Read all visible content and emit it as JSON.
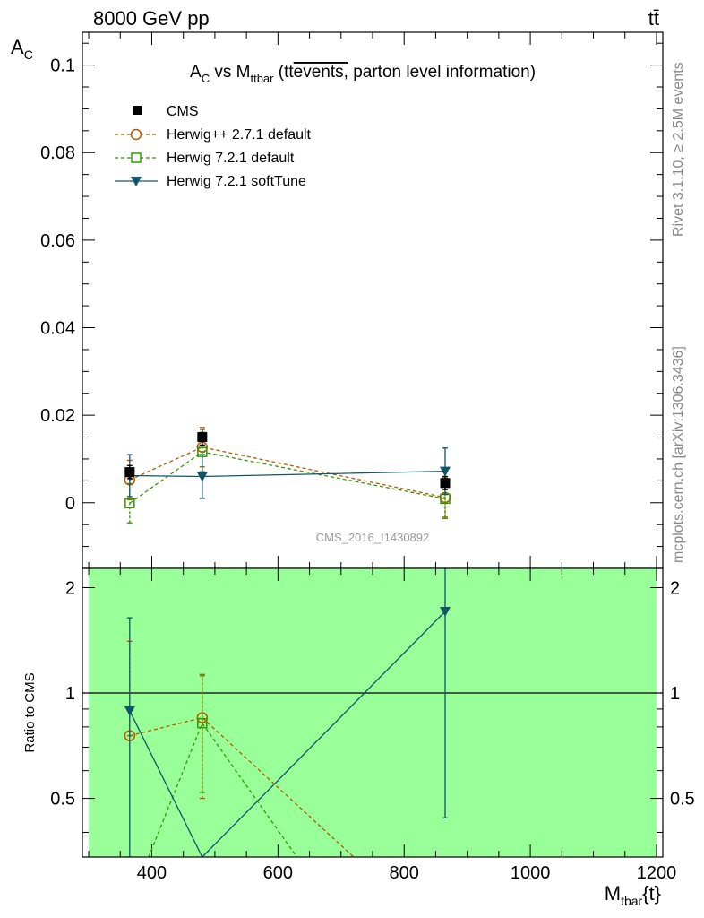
{
  "header": {
    "energy_label": "8000 GeV pp",
    "process_label": "tt̄"
  },
  "side_labels": {
    "rivet": "Rivet 3.1.10, ≥ 2.5M events",
    "mcplots": "mcplots.cern.ch [arXiv:1306.3436]"
  },
  "chart_data": [
    {
      "id": "main",
      "type": "line",
      "title_parts": {
        "a": "A",
        "a_sub": "C",
        "vs": " vs M",
        "m_sub": "ttbar",
        "paren_open": " (tt",
        "overlined": "events,",
        "rest": " parton level information)"
      },
      "ylabel": "A",
      "ylabel_sub": "C",
      "xlim": [
        290,
        1210
      ],
      "ylim": [
        -0.015,
        0.1075
      ],
      "yticks": [
        0,
        0.02,
        0.04,
        0.06,
        0.08,
        0.1
      ],
      "ytick_labels": [
        "0",
        "0.02",
        "0.04",
        "0.06",
        "0.08",
        "0.1"
      ],
      "watermark": "CMS_2016_I1430892",
      "legend_position": "top-left",
      "series": [
        {
          "name": "CMS",
          "key": "cms",
          "color": "#000000",
          "style": "data",
          "marker": "filled-square",
          "x": [
            365,
            480,
            865
          ],
          "y": [
            0.007,
            0.015,
            0.0045
          ],
          "yerr": [
            0.0015,
            0.0018,
            0.0015
          ]
        },
        {
          "name": "Herwig++ 2.7.1 default",
          "key": "hpp271",
          "color": "#b35900",
          "style": "dashed",
          "marker": "open-circle",
          "x": [
            365,
            480,
            865
          ],
          "y": [
            0.0052,
            0.0127,
            0.0012
          ],
          "yerr": [
            0.0045,
            0.0045,
            0.0045
          ]
        },
        {
          "name": "Herwig 7.2.1 default",
          "key": "h721",
          "color": "#339900",
          "style": "dashed",
          "marker": "open-square",
          "x": [
            365,
            480,
            865
          ],
          "y": [
            -0.0001,
            0.0116,
            0.0009
          ],
          "yerr": [
            0.0045,
            0.0045,
            0.0045
          ]
        },
        {
          "name": "Herwig 7.2.1 softTune",
          "key": "h721soft",
          "color": "#115566",
          "style": "solid",
          "marker": "filled-triangle-down",
          "x": [
            365,
            480,
            865
          ],
          "y": [
            0.0062,
            0.006,
            0.0072
          ],
          "yerr": [
            0.0048,
            0.005,
            0.0053
          ]
        }
      ]
    },
    {
      "id": "ratio",
      "type": "line",
      "ylabel": "Ratio to CMS",
      "xlabel": "M",
      "xlabel_sub": "tbar",
      "xlabel_suffix": "{t}",
      "xlim": [
        290,
        1210
      ],
      "ylim": [
        0.34,
        2.27
      ],
      "yticks": [
        0.5,
        1,
        2
      ],
      "ytick_labels": [
        "0.5",
        "1",
        "2"
      ],
      "xticks": [
        400,
        600,
        800,
        1000,
        1200
      ],
      "xtick_labels": [
        "400",
        "600",
        "800",
        "1000",
        "1200"
      ],
      "band": {
        "x": [
          300,
          1200
        ],
        "y": [
          0.34,
          2.27
        ],
        "color": "#99ff99"
      },
      "reference": 1,
      "series": [
        {
          "key": "hpp271",
          "color": "#b35900",
          "style": "dashed",
          "marker": "open-circle",
          "x": [
            365,
            480,
            720
          ],
          "y": [
            0.755,
            0.85,
            0.34
          ],
          "yerr_low": [
            0.0,
            0.35,
            0.0
          ],
          "yerr_high": [
            0.65,
            0.28,
            0.0
          ],
          "marker_mask": [
            true,
            true,
            false
          ]
        },
        {
          "key": "h721",
          "color": "#339900",
          "style": "dashed",
          "marker": "open-square",
          "x": [
            395,
            480,
            630
          ],
          "y": [
            0.34,
            0.82,
            0.34
          ],
          "yerr_low": [
            0.0,
            0.3,
            0.0
          ],
          "yerr_high": [
            0.0,
            0.3,
            0.0
          ],
          "marker_mask": [
            false,
            true,
            false
          ]
        },
        {
          "key": "h721soft",
          "color": "#115566",
          "style": "solid",
          "marker": "filled-triangle-down",
          "x": [
            365,
            480,
            865
          ],
          "y": [
            0.89,
            0.34,
            1.71
          ],
          "yerr_low": [
            0.55,
            0.0,
            1.27
          ],
          "yerr_high": [
            0.75,
            0.0,
            0.6
          ],
          "marker_mask": [
            true,
            false,
            true
          ]
        }
      ]
    }
  ]
}
